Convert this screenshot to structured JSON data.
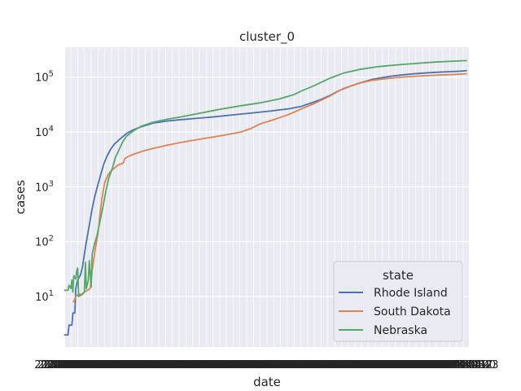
{
  "chart_data": {
    "type": "line",
    "title": "cluster_0",
    "xlabel": "date",
    "ylabel": "cases",
    "yscale": "log",
    "ylim": [
      1.2,
      350000
    ],
    "xlim": [
      "2020-03-02",
      "2021-04-24"
    ],
    "y_ticks": [
      {
        "value": 10,
        "base": "10",
        "exp": "1"
      },
      {
        "value": 100,
        "base": "10",
        "exp": "2"
      },
      {
        "value": 1000,
        "base": "10",
        "exp": "3"
      },
      {
        "value": 10000,
        "base": "10",
        "exp": "4"
      },
      {
        "value": 100000,
        "base": "10",
        "exp": "5"
      }
    ],
    "grid": true,
    "background": "#eaeaf2",
    "legend": {
      "title": "state",
      "position": "lower-right"
    },
    "series": [
      {
        "name": "Rhode Island",
        "color": "#4c72b0",
        "points": [
          [
            "2020-03-01",
            2
          ],
          [
            "2020-03-05",
            2
          ],
          [
            "2020-03-06",
            3
          ],
          [
            "2020-03-09",
            3
          ],
          [
            "2020-03-10",
            5
          ],
          [
            "2020-03-12",
            5
          ],
          [
            "2020-03-13",
            14
          ],
          [
            "2020-03-15",
            20
          ],
          [
            "2020-03-18",
            25
          ],
          [
            "2020-03-20",
            35
          ],
          [
            "2020-03-22",
            60
          ],
          [
            "2020-03-24",
            100
          ],
          [
            "2020-03-27",
            200
          ],
          [
            "2020-03-30",
            400
          ],
          [
            "2020-04-02",
            700
          ],
          [
            "2020-04-05",
            1100
          ],
          [
            "2020-04-08",
            1700
          ],
          [
            "2020-04-11",
            2600
          ],
          [
            "2020-04-14",
            3500
          ],
          [
            "2020-04-18",
            4800
          ],
          [
            "2020-04-22",
            6000
          ],
          [
            "2020-04-28",
            7500
          ],
          [
            "2020-05-05",
            9500
          ],
          [
            "2020-05-12",
            11000
          ],
          [
            "2020-05-20",
            12500
          ],
          [
            "2020-06-01",
            14500
          ],
          [
            "2020-06-15",
            15800
          ],
          [
            "2020-07-01",
            16800
          ],
          [
            "2020-07-15",
            17600
          ],
          [
            "2020-08-01",
            18700
          ],
          [
            "2020-08-20",
            20200
          ],
          [
            "2020-09-10",
            22000
          ],
          [
            "2020-09-30",
            24000
          ],
          [
            "2020-10-20",
            26500
          ],
          [
            "2020-11-01",
            29000
          ],
          [
            "2020-11-10",
            33000
          ],
          [
            "2020-11-20",
            38000
          ],
          [
            "2020-12-01",
            46000
          ],
          [
            "2020-12-10",
            56000
          ],
          [
            "2020-12-20",
            66000
          ],
          [
            "2021-01-01",
            78000
          ],
          [
            "2021-01-15",
            92000
          ],
          [
            "2021-02-01",
            103000
          ],
          [
            "2021-02-15",
            110000
          ],
          [
            "2021-03-01",
            116000
          ],
          [
            "2021-03-20",
            122000
          ],
          [
            "2021-04-15",
            128000
          ],
          [
            "2021-04-22",
            131000
          ]
        ]
      },
      {
        "name": "South Dakota",
        "color": "#dd8452",
        "points": [
          [
            "2020-03-10",
            8
          ],
          [
            "2020-03-11",
            8
          ],
          [
            "2020-03-12",
            9
          ],
          [
            "2020-03-13",
            10
          ],
          [
            "2020-03-16",
            11
          ],
          [
            "2020-03-19",
            11
          ],
          [
            "2020-03-22",
            12
          ],
          [
            "2020-03-25",
            13
          ],
          [
            "2020-03-28",
            14
          ],
          [
            "2020-03-30",
            30
          ],
          [
            "2020-04-02",
            70
          ],
          [
            "2020-04-05",
            140
          ],
          [
            "2020-04-07",
            300
          ],
          [
            "2020-04-09",
            600
          ],
          [
            "2020-04-12",
            1200
          ],
          [
            "2020-04-15",
            1600
          ],
          [
            "2020-04-18",
            1900
          ],
          [
            "2020-04-22",
            2200
          ],
          [
            "2020-04-26",
            2500
          ],
          [
            "2020-05-01",
            2700
          ],
          [
            "2020-05-03",
            3300
          ],
          [
            "2020-05-08",
            3700
          ],
          [
            "2020-05-15",
            4100
          ],
          [
            "2020-05-22",
            4500
          ],
          [
            "2020-06-01",
            5000
          ],
          [
            "2020-06-15",
            5700
          ],
          [
            "2020-07-01",
            6500
          ],
          [
            "2020-07-20",
            7400
          ],
          [
            "2020-08-10",
            8500
          ],
          [
            "2020-08-31",
            10000
          ],
          [
            "2020-09-10",
            11500
          ],
          [
            "2020-09-20",
            14000
          ],
          [
            "2020-10-05",
            17000
          ],
          [
            "2020-10-20",
            21000
          ],
          [
            "2020-11-01",
            26000
          ],
          [
            "2020-11-15",
            33000
          ],
          [
            "2020-12-01",
            45000
          ],
          [
            "2020-12-15",
            62000
          ],
          [
            "2021-01-01",
            78000
          ],
          [
            "2021-01-15",
            88000
          ],
          [
            "2021-02-01",
            95000
          ],
          [
            "2021-02-15",
            100000
          ],
          [
            "2021-03-01",
            104000
          ],
          [
            "2021-03-20",
            108000
          ],
          [
            "2021-04-10",
            112000
          ],
          [
            "2021-04-22",
            115000
          ]
        ]
      },
      {
        "name": "Nebraska",
        "color": "#55a868",
        "points": [
          [
            "2020-03-01",
            13
          ],
          [
            "2020-03-05",
            13
          ],
          [
            "2020-03-06",
            16
          ],
          [
            "2020-03-07",
            15
          ],
          [
            "2020-03-08",
            14
          ],
          [
            "2020-03-09",
            20
          ],
          [
            "2020-03-10",
            12
          ],
          [
            "2020-03-11",
            24
          ],
          [
            "2020-03-12",
            22
          ],
          [
            "2020-03-13",
            21
          ],
          [
            "2020-03-14",
            29
          ],
          [
            "2020-03-15",
            33
          ],
          [
            "2020-03-16",
            10
          ],
          [
            "2020-03-20",
            11
          ],
          [
            "2020-03-22",
            12
          ],
          [
            "2020-03-23",
            42
          ],
          [
            "2020-03-24",
            14
          ],
          [
            "2020-03-26",
            20
          ],
          [
            "2020-03-27",
            45
          ],
          [
            "2020-03-29",
            15
          ],
          [
            "2020-03-30",
            60
          ],
          [
            "2020-04-01",
            85
          ],
          [
            "2020-04-04",
            130
          ],
          [
            "2020-04-07",
            230
          ],
          [
            "2020-04-10",
            420
          ],
          [
            "2020-04-13",
            800
          ],
          [
            "2020-04-16",
            1400
          ],
          [
            "2020-04-20",
            2200
          ],
          [
            "2020-04-23",
            3400
          ],
          [
            "2020-04-27",
            4800
          ],
          [
            "2020-05-01",
            6800
          ],
          [
            "2020-05-05",
            8500
          ],
          [
            "2020-05-12",
            10500
          ],
          [
            "2020-05-20",
            12800
          ],
          [
            "2020-06-01",
            15000
          ],
          [
            "2020-06-15",
            17000
          ],
          [
            "2020-07-01",
            19000
          ],
          [
            "2020-07-20",
            22000
          ],
          [
            "2020-08-10",
            26000
          ],
          [
            "2020-08-31",
            30000
          ],
          [
            "2020-09-20",
            34000
          ],
          [
            "2020-10-10",
            40000
          ],
          [
            "2020-10-25",
            48000
          ],
          [
            "2020-11-01",
            55000
          ],
          [
            "2020-11-15",
            70000
          ],
          [
            "2020-12-01",
            95000
          ],
          [
            "2020-12-15",
            118000
          ],
          [
            "2021-01-01",
            138000
          ],
          [
            "2021-01-20",
            155000
          ],
          [
            "2021-02-10",
            168000
          ],
          [
            "2021-03-01",
            178000
          ],
          [
            "2021-03-20",
            188000
          ],
          [
            "2021-04-10",
            196000
          ],
          [
            "2021-04-22",
            200000
          ]
        ]
      }
    ]
  }
}
